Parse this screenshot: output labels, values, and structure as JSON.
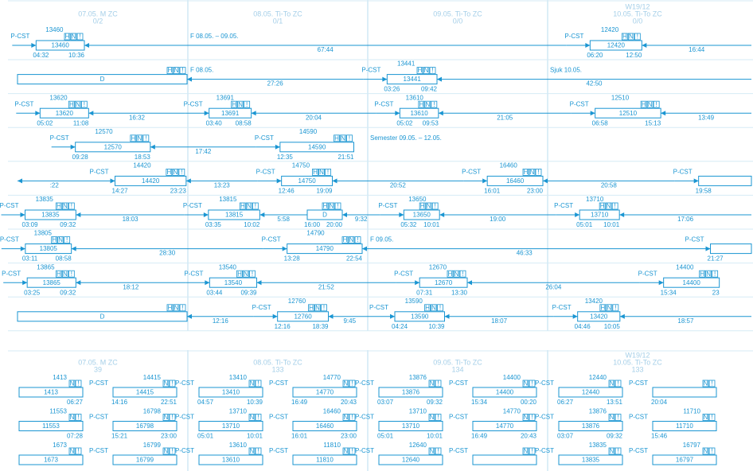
{
  "badges": [
    "H",
    "N",
    "!"
  ],
  "upper": {
    "header": {
      "week": "W19/12",
      "days": [
        {
          "label": "07.05. M ZC",
          "count": "0/2"
        },
        {
          "label": "08.05. Ti-To ZC",
          "count": "0/1"
        },
        {
          "label": "09.05. Ti-To ZC",
          "count": "0/0"
        },
        {
          "label": "10.05. Ti-To ZC",
          "count": "0/0"
        }
      ]
    },
    "rows": [
      {
        "cells": [
          [
            {
              "id": "13460",
              "tag": "P-CST",
              "start": "04:32",
              "end": "10:36"
            },
            {
              "rest": "67:44"
            }
          ],
          [
            {
              "note": "F 08.05. – 09.05."
            }
          ],
          [],
          [
            {
              "id": "12420",
              "tag": "P-CST",
              "start": "06:20",
              "end": "12:50"
            },
            {
              "rest": "16:44"
            }
          ]
        ]
      },
      {
        "cells": [
          [
            {
              "text": "D"
            },
            {
              "rest": "27:26"
            }
          ],
          [
            {
              "note": "F 08.05."
            }
          ],
          [
            {
              "id": "13441",
              "tag": "P-CST",
              "start": "03:26",
              "end": "09:42"
            },
            {
              "rest": "42:50"
            }
          ],
          [
            {
              "note": "Sjuk 10.05."
            }
          ]
        ]
      },
      {
        "cells": [
          [
            {
              "id": "13620",
              "tag": "P-CST",
              "start": "05:02",
              "end": "11:08"
            },
            {
              "rest": "16:32"
            }
          ],
          [
            {
              "id": "13691",
              "tag": "P-CST",
              "start": "03:40",
              "end": "08:58"
            },
            {
              "rest": "20:04"
            }
          ],
          [
            {
              "id": "13610",
              "tag": "P-CST",
              "start": "05:02",
              "end": "09:53"
            },
            {
              "rest": "21:05"
            }
          ],
          [
            {
              "id": "12510",
              "tag": "P-CST",
              "start": "06:58",
              "end": "15:13"
            },
            {
              "rest": "13:49"
            }
          ]
        ]
      },
      {
        "cells": [
          [
            {
              "id": "12570",
              "tag": "P-CST",
              "start": "09:28",
              "end": "18:53"
            },
            {
              "rest": "17:42"
            }
          ],
          [
            {
              "id": "14590",
              "tag": "P-CST",
              "start": "12:35",
              "end": "21:51"
            }
          ],
          [
            {
              "note": "Semester 09.05. – 12.05."
            }
          ],
          []
        ]
      },
      {
        "cells": [
          [
            {
              "rest": ":22"
            },
            {
              "id": "14420",
              "tag": "P-CST",
              "start": "14:27",
              "end": "23:23"
            },
            {
              "rest": "13:23"
            }
          ],
          [
            {
              "id": "14750",
              "tag": "P-CST",
              "start": "12:46",
              "end": "19:09"
            },
            {
              "rest": "20:52"
            }
          ],
          [
            {
              "id": "16460",
              "tag": "P-CST",
              "start": "16:01",
              "end": "23:00"
            },
            {
              "rest": "20:58"
            }
          ],
          [
            {
              "tag": "P-CST",
              "start": "19:58"
            }
          ]
        ]
      },
      {
        "cells": [
          [
            {
              "id": "13835",
              "tag": "P-CST",
              "start": "03:09",
              "end": "09:32"
            },
            {
              "rest": "18:03"
            }
          ],
          [
            {
              "id": "13815",
              "tag": "P-CST",
              "start": "03:35",
              "end": "10:02"
            },
            {
              "rest": "5:58"
            },
            {
              "text": "D",
              "start": "16:00",
              "end": "20:00"
            },
            {
              "rest": "9:32"
            }
          ],
          [
            {
              "id": "13650",
              "tag": "P-CST",
              "start": "05:32",
              "end": "10:01"
            },
            {
              "rest": "19:00"
            }
          ],
          [
            {
              "id": "13710",
              "tag": "P-CST",
              "start": "05:01",
              "end": "10:01"
            },
            {
              "rest": "17:06"
            }
          ]
        ]
      },
      {
        "cells": [
          [
            {
              "id": "13805",
              "tag": "P-CST",
              "start": "03:11",
              "end": "08:58"
            },
            {
              "rest": "28:30"
            }
          ],
          [
            {
              "id": "14790",
              "tag": "P-CST",
              "start": "13:28",
              "end": "22:54"
            }
          ],
          [
            {
              "note": "F 09.05."
            },
            {
              "rest": "46:33"
            }
          ],
          [
            {
              "tag": "P-CST",
              "start": "21:27"
            }
          ]
        ]
      },
      {
        "cells": [
          [
            {
              "id": "13865",
              "tag": "P-CST",
              "start": "03:25",
              "end": "09:32"
            },
            {
              "rest": "18:12"
            }
          ],
          [
            {
              "id": "13540",
              "tag": "P-CST",
              "start": "03:44",
              "end": "09:39"
            },
            {
              "rest": "21:52"
            }
          ],
          [
            {
              "id": "12670",
              "tag": "P-CST",
              "start": "07:31",
              "end": "13:30"
            },
            {
              "rest": "26:04"
            }
          ],
          [
            {
              "id": "14400",
              "tag": "P-CST",
              "start": "15:34",
              "end": "23"
            }
          ]
        ]
      },
      {
        "cells": [
          [
            {
              "text": "D"
            },
            {
              "rest": "12:16"
            }
          ],
          [
            {
              "id": "12760",
              "tag": "P-CST",
              "start": "12:16",
              "end": "18:39"
            },
            {
              "rest": "9:45"
            }
          ],
          [
            {
              "id": "13590",
              "tag": "P-CST",
              "start": "04:24",
              "end": "10:39"
            },
            {
              "rest": "18:07"
            }
          ],
          [
            {
              "id": "13420",
              "tag": "P-CST",
              "start": "04:46",
              "end": "10:05"
            },
            {
              "rest": "18:57"
            }
          ]
        ]
      }
    ]
  },
  "lower": {
    "header": {
      "week": "W19/12",
      "days": [
        {
          "label": "07.05. M ZC",
          "count": "39"
        },
        {
          "label": "08.05. Ti-To ZC",
          "count": "133"
        },
        {
          "label": "09.05. Ti-To ZC",
          "count": "134"
        },
        {
          "label": "10.05. Ti-To ZC",
          "count": "133"
        }
      ]
    },
    "rows": [
      [
        {
          "id": "1413",
          "end": "06:27"
        },
        {
          "id": "14415",
          "tag": "P-CST",
          "start": "14:16",
          "end": "22:51"
        },
        {
          "id": "13410",
          "tag": "P-CST",
          "start": "04:57",
          "end": "10:39"
        },
        {
          "id": "14770",
          "tag": "P-CST",
          "start": "16:49",
          "end": "20:43"
        },
        {
          "id": "13876",
          "tag": "P-CST",
          "start": "03:07",
          "end": "09:32"
        },
        {
          "id": "14400",
          "tag": "P-CST",
          "start": "15:34",
          "end": "00:20"
        },
        {
          "id": "12440",
          "tag": "P-CST",
          "start": "06:27",
          "end": "13:51"
        },
        {
          "tag": "P-CST",
          "start": "20:04"
        }
      ],
      [
        {
          "id": "11553",
          "end": "07:28"
        },
        {
          "id": "16798",
          "tag": "P-CST",
          "start": "15:21",
          "end": "23:00"
        },
        {
          "id": "13710",
          "tag": "P-CST",
          "start": "05:01",
          "end": "10:01"
        },
        {
          "id": "16460",
          "tag": "P-CST",
          "start": "16:01",
          "end": "23:00"
        },
        {
          "id": "13710",
          "tag": "P-CST",
          "start": "05:01",
          "end": "10:01"
        },
        {
          "id": "14770",
          "tag": "P-CST",
          "start": "16:49",
          "end": "20:43"
        },
        {
          "id": "13876",
          "tag": "P-CST",
          "start": "03:07",
          "end": "09:32"
        },
        {
          "id": "11710",
          "tag": "P-CST",
          "start": "15:46"
        }
      ],
      [
        {
          "id": "1673"
        },
        {
          "id": "16799",
          "tag": "P-CST"
        },
        {
          "id": "13610",
          "tag": "P-CST"
        },
        {
          "id": "11810",
          "tag": "P-CST"
        },
        {
          "id": "12640",
          "tag": "P-CST"
        },
        {
          "tag": "P-CST"
        },
        {
          "id": "13835",
          "tag": "P-CST"
        },
        {
          "id": "16797",
          "tag": "P-CST"
        }
      ]
    ]
  }
}
